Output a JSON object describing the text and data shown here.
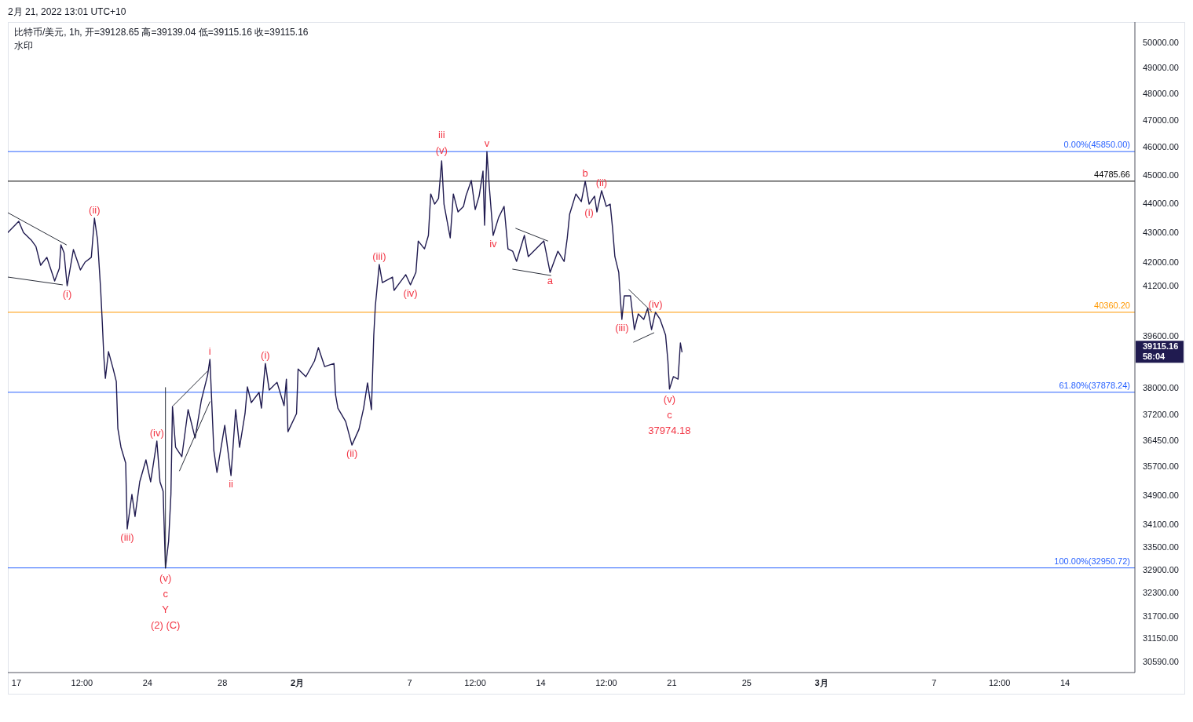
{
  "chart_data": {
    "type": "line",
    "title": "比特币/美元, 1h, 开=39128.65 高=39139.04 低=39115.16 收=39115.16",
    "subtitle": "水印",
    "log": true,
    "xlim": [
      "2022-01-16T13:00",
      "2022-03-17T17:30"
    ],
    "xticks": [
      {
        "value": "2022-01-17",
        "label": "17"
      },
      {
        "value": "2022-01-20T12:00",
        "label": "12:00"
      },
      {
        "value": "2022-01-24",
        "label": "24"
      },
      {
        "value": "2022-01-28",
        "label": "28"
      },
      {
        "value": "2022-02-01",
        "label": "2月"
      },
      {
        "value": "2022-02-07",
        "label": "7"
      },
      {
        "value": "2022-02-10T12:00",
        "label": "12:00"
      },
      {
        "value": "2022-02-14",
        "label": "14"
      },
      {
        "value": "2022-02-17T12:00",
        "label": "12:00"
      },
      {
        "value": "2022-02-21",
        "label": "21"
      },
      {
        "value": "2022-02-25",
        "label": "25"
      },
      {
        "value": "2022-03-01",
        "label": "3月"
      },
      {
        "value": "2022-03-07",
        "label": "7"
      },
      {
        "value": "2022-03-10T12:00",
        "label": "12:00"
      },
      {
        "value": "2022-03-14",
        "label": "14"
      }
    ],
    "ylim": [
      30325,
      50817
    ],
    "yticks": [
      {
        "value": 50000,
        "label": "50000.00"
      },
      {
        "value": 49000,
        "label": "49000.00"
      },
      {
        "value": 48000,
        "label": "48000.00"
      },
      {
        "value": 47000,
        "label": "47000.00"
      },
      {
        "value": 46000,
        "label": "46000.00"
      },
      {
        "value": 45000,
        "label": "45000.00"
      },
      {
        "value": 44000,
        "label": "44000.00"
      },
      {
        "value": 43000,
        "label": "43000.00"
      },
      {
        "value": 42000,
        "label": "42000.00"
      },
      {
        "value": 41200,
        "label": "41200.00"
      },
      {
        "value": 39600,
        "label": "39600.00"
      },
      {
        "value": 39115.16,
        "label": "39115.16\n58:04"
      },
      {
        "value": 38000,
        "label": "38000.00"
      },
      {
        "value": 37200,
        "label": "37200.00"
      },
      {
        "value": 36450,
        "label": "36450.00"
      },
      {
        "value": 35700,
        "label": "35700.00"
      },
      {
        "value": 34900,
        "label": "34900.00"
      },
      {
        "value": 34100,
        "label": "34100.00"
      },
      {
        "value": 33500,
        "label": "33500.00"
      },
      {
        "value": 32900,
        "label": "32900.00"
      },
      {
        "value": 32300,
        "label": "32300.00"
      },
      {
        "value": 31700,
        "label": "31700.00"
      },
      {
        "value": 31150,
        "label": "31150.00"
      },
      {
        "value": 30590,
        "label": "30590.00"
      }
    ],
    "series": [
      {
        "color": "#201b50",
        "x": [
          "2022-01-16T13:00",
          "2022-01-17T03:00",
          "2022-01-17T09:00",
          "2022-01-17T19:00",
          "2022-01-18T01:00",
          "2022-01-18T07:00",
          "2022-01-18T15:00",
          "2022-01-19T01:00",
          "2022-01-19T07:00",
          "2022-01-19T09:00",
          "2022-01-19T13:00",
          "2022-01-19T17:00",
          "2022-01-20T01:00",
          "2022-01-20T10:00",
          "2022-01-20T16:00",
          "2022-01-21T00:00",
          "2022-01-21T04:00",
          "2022-01-21T08:00",
          "2022-01-21T12:00",
          "2022-01-21T14:00",
          "2022-01-21T16:00",
          "2022-01-21T18:00",
          "2022-01-21T22:00",
          "2022-01-22T04:00",
          "2022-01-22T08:00",
          "2022-01-22T10:00",
          "2022-01-22T14:00",
          "2022-01-22T20:00",
          "2022-01-22T22:00",
          "2022-01-23T04:00",
          "2022-01-23T08:00",
          "2022-01-23T14:00",
          "2022-01-23T22:00",
          "2022-01-24T04:00",
          "2022-01-24T12:00",
          "2022-01-24T16:00",
          "2022-01-24T20:00",
          "2022-01-24T23:00",
          "2022-01-25T03:00",
          "2022-01-25T06:00",
          "2022-01-25T08:00",
          "2022-01-25T12:00",
          "2022-01-25T20:00",
          "2022-01-26T04:00",
          "2022-01-26T13:00",
          "2022-01-26T21:00",
          "2022-01-27T05:00",
          "2022-01-27T08:00",
          "2022-01-27T13:00",
          "2022-01-27T17:00",
          "2022-01-28T03:00",
          "2022-01-28T11:00",
          "2022-01-28T17:00",
          "2022-01-28T22:00",
          "2022-01-29T05:00",
          "2022-01-29T08:00",
          "2022-01-29T13:00",
          "2022-01-29T23:00",
          "2022-01-30T02:00",
          "2022-01-30T07:00",
          "2022-01-30T12:00",
          "2022-01-30T22:00",
          "2022-01-31T07:00",
          "2022-01-31T10:00",
          "2022-01-31T12:00",
          "2022-01-31T23:00",
          "2022-02-01T01:00",
          "2022-02-01T11:00",
          "2022-02-01T22:00",
          "2022-02-02T03:00",
          "2022-02-02T11:00",
          "2022-02-02T23:00",
          "2022-02-03T01:00",
          "2022-02-03T04:00",
          "2022-02-03T14:00",
          "2022-02-03T22:00",
          "2022-02-04T07:00",
          "2022-02-04T13:00",
          "2022-02-04T18:00",
          "2022-02-04T23:00",
          "2022-02-05T02:00",
          "2022-02-05T04:00",
          "2022-02-05T09:00",
          "2022-02-05T13:00",
          "2022-02-06T02:00",
          "2022-02-06T04:00",
          "2022-02-06T19:00",
          "2022-02-07T01:00",
          "2022-02-07T08:00",
          "2022-02-07T11:00",
          "2022-02-07T19:00",
          "2022-02-08T00:00",
          "2022-02-08T03:00",
          "2022-02-08T08:00",
          "2022-02-08T13:00",
          "2022-02-08T17:00",
          "2022-02-08T20:00",
          "2022-02-09T01:00",
          "2022-02-09T04:00",
          "2022-02-09T08:00",
          "2022-02-09T14:00",
          "2022-02-09T21:00",
          "2022-02-10T00:00",
          "2022-02-10T07:00",
          "2022-02-10T12:00",
          "2022-02-10T17:00",
          "2022-02-10T22:00",
          "2022-02-11T00:00",
          "2022-02-11T03:00",
          "2022-02-11T06:00",
          "2022-02-11T11:00",
          "2022-02-11T18:00",
          "2022-02-12T01:00",
          "2022-02-12T06:00",
          "2022-02-12T12:00",
          "2022-02-12T17:00",
          "2022-02-13T03:00",
          "2022-02-13T08:00",
          "2022-02-13T22:00",
          "2022-02-14T04:00",
          "2022-02-14T12:00",
          "2022-02-14T22:00",
          "2022-02-15T06:00",
          "2022-02-15T10:00",
          "2022-02-15T13:00",
          "2022-02-15T21:00",
          "2022-02-16T04:00",
          "2022-02-16T09:00",
          "2022-02-16T14:00",
          "2022-02-16T21:00",
          "2022-02-17T00:00",
          "2022-02-17T06:00",
          "2022-02-17T12:00",
          "2022-02-17T17:00",
          "2022-02-17T20:00",
          "2022-02-17T23:00",
          "2022-02-18T04:00",
          "2022-02-18T06:00",
          "2022-02-18T08:00",
          "2022-02-18T11:00",
          "2022-02-18T19:00",
          "2022-02-19T00:00",
          "2022-02-19T05:00",
          "2022-02-19T12:00",
          "2022-02-19T17:00",
          "2022-02-19T22:00",
          "2022-02-20T03:00",
          "2022-02-20T09:00",
          "2022-02-20T16:00",
          "2022-02-20T19:00",
          "2022-02-20T21:00",
          "2022-02-21T02:00",
          "2022-02-21T08:00",
          "2022-02-21T11:00",
          "2022-02-21T13:00"
        ],
        "values": [
          43000,
          43380,
          43000,
          42740,
          42525,
          41895,
          42160,
          41375,
          41790,
          42580,
          42315,
          41220,
          42420,
          41740,
          42000,
          42160,
          43490,
          42740,
          41070,
          40060,
          38975,
          38300,
          39120,
          38585,
          38205,
          36805,
          36260,
          35810,
          33985,
          34930,
          34325,
          35280,
          35900,
          35280,
          36440,
          35280,
          35015,
          32950,
          33650,
          34930,
          37455,
          36260,
          35990,
          37360,
          36530,
          37640,
          38395,
          38880,
          36170,
          35545,
          36900,
          35455,
          37360,
          36260,
          37245,
          38040,
          37570,
          37875,
          37405,
          38755,
          37945,
          38180,
          37480,
          38275,
          36710,
          37245,
          38585,
          38350,
          38830,
          39245,
          38660,
          38755,
          37805,
          37405,
          37010,
          36325,
          36780,
          37405,
          38160,
          37360,
          39635,
          40560,
          41920,
          41325,
          41505,
          41070,
          41585,
          41250,
          41660,
          42710,
          42445,
          42900,
          44335,
          43980,
          44175,
          45515,
          43980,
          43245,
          42815,
          44335,
          43705,
          43900,
          44255,
          44810,
          43790,
          44255,
          45145,
          43245,
          45850,
          44615,
          42900,
          43515,
          43900,
          42445,
          42365,
          42025,
          42900,
          42185,
          42550,
          42710,
          41660,
          42365,
          42025,
          42815,
          43625,
          44335,
          44065,
          44785,
          43980,
          44255,
          43705,
          44450,
          43900,
          43980,
          43165,
          42185,
          41660,
          40815,
          40135,
          40890,
          40890,
          39810,
          40310,
          40135,
          40485,
          39810,
          40360,
          40135,
          39635,
          38830,
          37974.18,
          38350,
          38275,
          39390,
          39115.16
        ]
      },
      {
        "color": "#2a2e39",
        "x": [
          "2022-01-16T13:00",
          "2022-01-19T16:00"
        ],
        "values": [
          43680,
          42580
        ]
      },
      {
        "color": "#2a2e39",
        "x": [
          "2022-01-16T13:00",
          "2022-01-19T11:00"
        ],
        "values": [
          41505,
          41250
        ]
      },
      {
        "color": "#2a2e39",
        "x": [
          "2022-01-25T09:00",
          "2022-01-27T05:00"
        ],
        "values": [
          37480,
          38520
        ]
      },
      {
        "color": "#2a2e39",
        "x": [
          "2022-01-25T17:00",
          "2022-01-27T08:00"
        ],
        "values": [
          35590,
          37595
        ]
      },
      {
        "color": "#2a2e39",
        "x": [
          "2022-02-12T16:00",
          "2022-02-14T09:00"
        ],
        "values": [
          43140,
          42710
        ]
      },
      {
        "color": "#2a2e39",
        "x": [
          "2022-02-12T12:00",
          "2022-02-14T13:00"
        ],
        "values": [
          41765,
          41555
        ]
      },
      {
        "color": "#2a2e39",
        "x": [
          "2022-02-18T17:00",
          "2022-02-19T22:00"
        ],
        "values": [
          41095,
          40385
        ]
      },
      {
        "color": "#2a2e39",
        "x": [
          "2022-02-18T23:00",
          "2022-02-20T01:00"
        ],
        "values": [
          39415,
          39710
        ]
      },
      {
        "color": "#2a2e39",
        "x": [
          "2022-01-24T23:00",
          "2022-01-24T23:00"
        ],
        "values": [
          32950,
          38020
        ]
      }
    ],
    "ref_lines": [
      {
        "axis": "y",
        "value": 45850,
        "label": "0.00%(45850.00)",
        "color": "#2962ff"
      },
      {
        "axis": "y",
        "value": 37878.24,
        "label": "61.80%(37878.24)",
        "color": "#2962ff"
      },
      {
        "axis": "y",
        "value": 32950.72,
        "label": "100.00%(32950.72)",
        "color": "#2962ff"
      },
      {
        "axis": "y",
        "value": 44785.66,
        "label": "44785.66",
        "color": "#000000"
      },
      {
        "axis": "y",
        "value": 40360.2,
        "label": "40360.20",
        "color": "#ff9800"
      }
    ],
    "annotations": [
      "2月 21, 2022 13:01 UTC+10",
      {
        "text": "(ii)",
        "x": "2022-01-21T04:00",
        "y": 43490
      },
      {
        "text": "(i)",
        "x": "2022-01-19T17:00",
        "y": 41220
      },
      {
        "text": "(iii)",
        "x": "2022-01-22T22:00",
        "y": 33985
      },
      {
        "text": "(iv)",
        "x": "2022-01-24T12:00",
        "y": 36440
      },
      {
        "text": "(v)\nc\nY\n(2) (C)",
        "x": "2022-01-24T23:00",
        "y": 32950
      },
      {
        "text": "i",
        "x": "2022-01-27T08:00",
        "y": 38880
      },
      {
        "text": "ii",
        "x": "2022-01-28T11:00",
        "y": 35455
      },
      {
        "text": "(i)",
        "x": "2022-01-30T07:00",
        "y": 38755
      },
      {
        "text": "(ii)",
        "x": "2022-02-03T22:00",
        "y": 36325
      },
      {
        "text": "(iii)",
        "x": "2022-02-05T09:00",
        "y": 41920
      },
      {
        "text": "(iv)",
        "x": "2022-02-07T01:00",
        "y": 41250
      },
      {
        "text": "iii\n(v)",
        "x": "2022-02-08T17:00",
        "y": 45515
      },
      {
        "text": "v",
        "x": "2022-02-11T03:00",
        "y": 45850
      },
      {
        "text": "iv",
        "x": "2022-02-11T11:00",
        "y": 42900
      },
      {
        "text": "a",
        "x": "2022-02-14T12:00",
        "y": 41660
      },
      {
        "text": "b",
        "x": "2022-02-16T09:00",
        "y": 44785
      },
      {
        "text": "(ii)",
        "x": "2022-02-17T06:00",
        "y": 44450
      },
      {
        "text": "(i)",
        "x": "2022-02-16T14:00",
        "y": 43980
      },
      {
        "text": "(iii)",
        "x": "2022-02-18T08:00",
        "y": 40135
      },
      {
        "text": "(iv)",
        "x": "2022-02-20T03:00",
        "y": 40360
      },
      {
        "text": "(v)\nc\n37974.18",
        "x": "2022-02-20T21:00",
        "y": 37974.18
      }
    ]
  }
}
